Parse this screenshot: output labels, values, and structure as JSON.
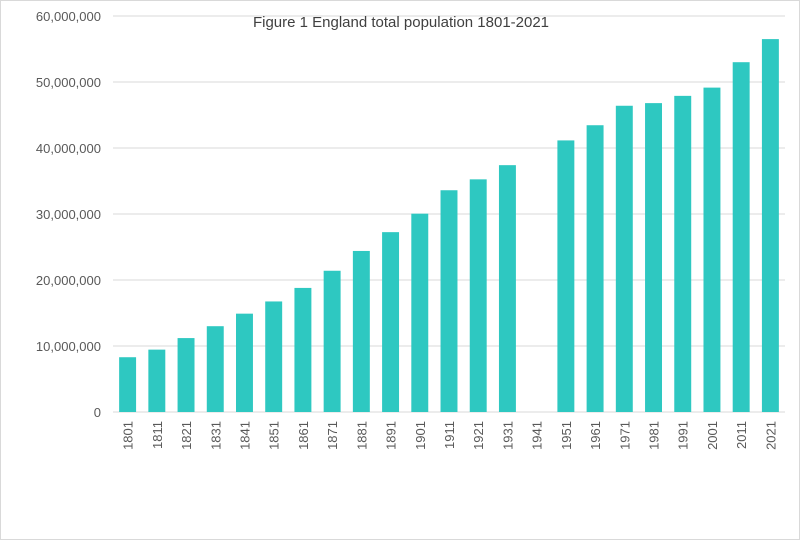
{
  "chart_data": {
    "type": "bar",
    "title": "Figure 1 England total population 1801-2021",
    "xlabel": "",
    "ylabel": "",
    "categories": [
      "1801",
      "1811",
      "1821",
      "1831",
      "1841",
      "1851",
      "1861",
      "1871",
      "1881",
      "1891",
      "1901",
      "1911",
      "1921",
      "1931",
      "1941",
      "1951",
      "1961",
      "1971",
      "1981",
      "1991",
      "2001",
      "2011",
      "2021"
    ],
    "values": [
      8300000,
      9450000,
      11200000,
      13000000,
      14900000,
      16750000,
      18800000,
      21400000,
      24400000,
      27250000,
      30050000,
      33600000,
      35250000,
      37400000,
      null,
      41150000,
      43450000,
      46400000,
      46800000,
      47900000,
      49150000,
      53000000,
      56500000
    ],
    "ylim": [
      0,
      60000000
    ],
    "yticks": [
      0,
      10000000,
      20000000,
      30000000,
      40000000,
      50000000,
      60000000
    ],
    "ytick_labels": [
      "0",
      "10,000,000",
      "20,000,000",
      "30,000,000",
      "40,000,000",
      "50,000,000",
      "60,000,000"
    ],
    "grid": true,
    "bar_color": "#2ec8c1",
    "grid_color": "#d9d9d9"
  }
}
